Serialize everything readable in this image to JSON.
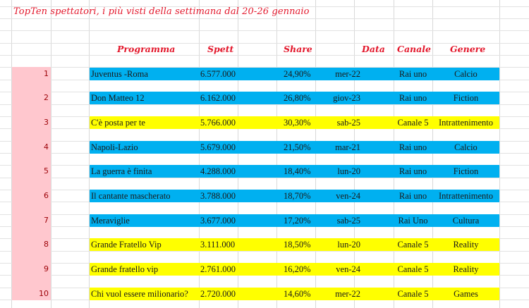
{
  "title": "TopTen spettatori, i più visti della settimana dal 20-26 gennaio",
  "colors": {
    "title_red": "#e3172b",
    "rank_bg_pink": "#ffc7ce",
    "rank_text": "#9c0006",
    "rai_blue": "#00b0f0",
    "mediaset_yellow": "#ffff00"
  },
  "headers": {
    "programma": "Programma",
    "spett": "Spett",
    "share": "Share",
    "data": "Data",
    "canale": "Canale",
    "genere": "Genere"
  },
  "rows": [
    {
      "rank": "1",
      "programma": "Juventus -Roma",
      "spett": "6.577.000",
      "share": "24,90%",
      "data": "mer-22",
      "canale": "Rai uno",
      "genere": "Calcio",
      "color": "blue"
    },
    {
      "rank": "2",
      "programma": "Don Matteo 12",
      "spett": "6.162.000",
      "share": "26,80%",
      "data": "giov-23",
      "canale": "Rai uno",
      "genere": "Fiction",
      "color": "blue"
    },
    {
      "rank": "3",
      "programma": "C'è posta per te",
      "spett": "5.766.000",
      "share": "30,30%",
      "data": "sab-25",
      "canale": "Canale 5",
      "genere": "Intrattenimento",
      "color": "yellow"
    },
    {
      "rank": "4",
      "programma": "Napoli-Lazio",
      "spett": "5.679.000",
      "share": "21,50%",
      "data": "mar-21",
      "canale": "Rai uno",
      "genere": "Calcio",
      "color": "blue"
    },
    {
      "rank": "5",
      "programma": "La guerra è finita",
      "spett": "4.288.000",
      "share": "18,40%",
      "data": "lun-20",
      "canale": "Rai uno",
      "genere": "Fiction",
      "color": "blue"
    },
    {
      "rank": "6",
      "programma": "Il cantante mascherato",
      "spett": "3.788.000",
      "share": "18,70%",
      "data": "ven-24",
      "canale": "Rai uno",
      "genere": "Intrattenimento",
      "color": "blue"
    },
    {
      "rank": "7",
      "programma": "Meraviglie",
      "spett": "3.677.000",
      "share": "17,20%",
      "data": "sab-25",
      "canale": "Rai Uno",
      "genere": "Cultura",
      "color": "blue"
    },
    {
      "rank": "8",
      "programma": "Grande Fratello Vip",
      "spett": "3.111.000",
      "share": "18,50%",
      "data": "lun-20",
      "canale": "Canale 5",
      "genere": "Reality",
      "color": "yellow"
    },
    {
      "rank": "9",
      "programma": "Grande fratello vip",
      "spett": "2.761.000",
      "share": "16,20%",
      "data": "ven-24",
      "canale": "Canale 5",
      "genere": "Reality",
      "color": "yellow"
    },
    {
      "rank": "10",
      "programma": "Chi vuol essere milionario?",
      "spett": "2.720.000",
      "share": "14,60%",
      "data": "mer-22",
      "canale": "Canale 5",
      "genere": "Games",
      "color": "yellow"
    }
  ]
}
